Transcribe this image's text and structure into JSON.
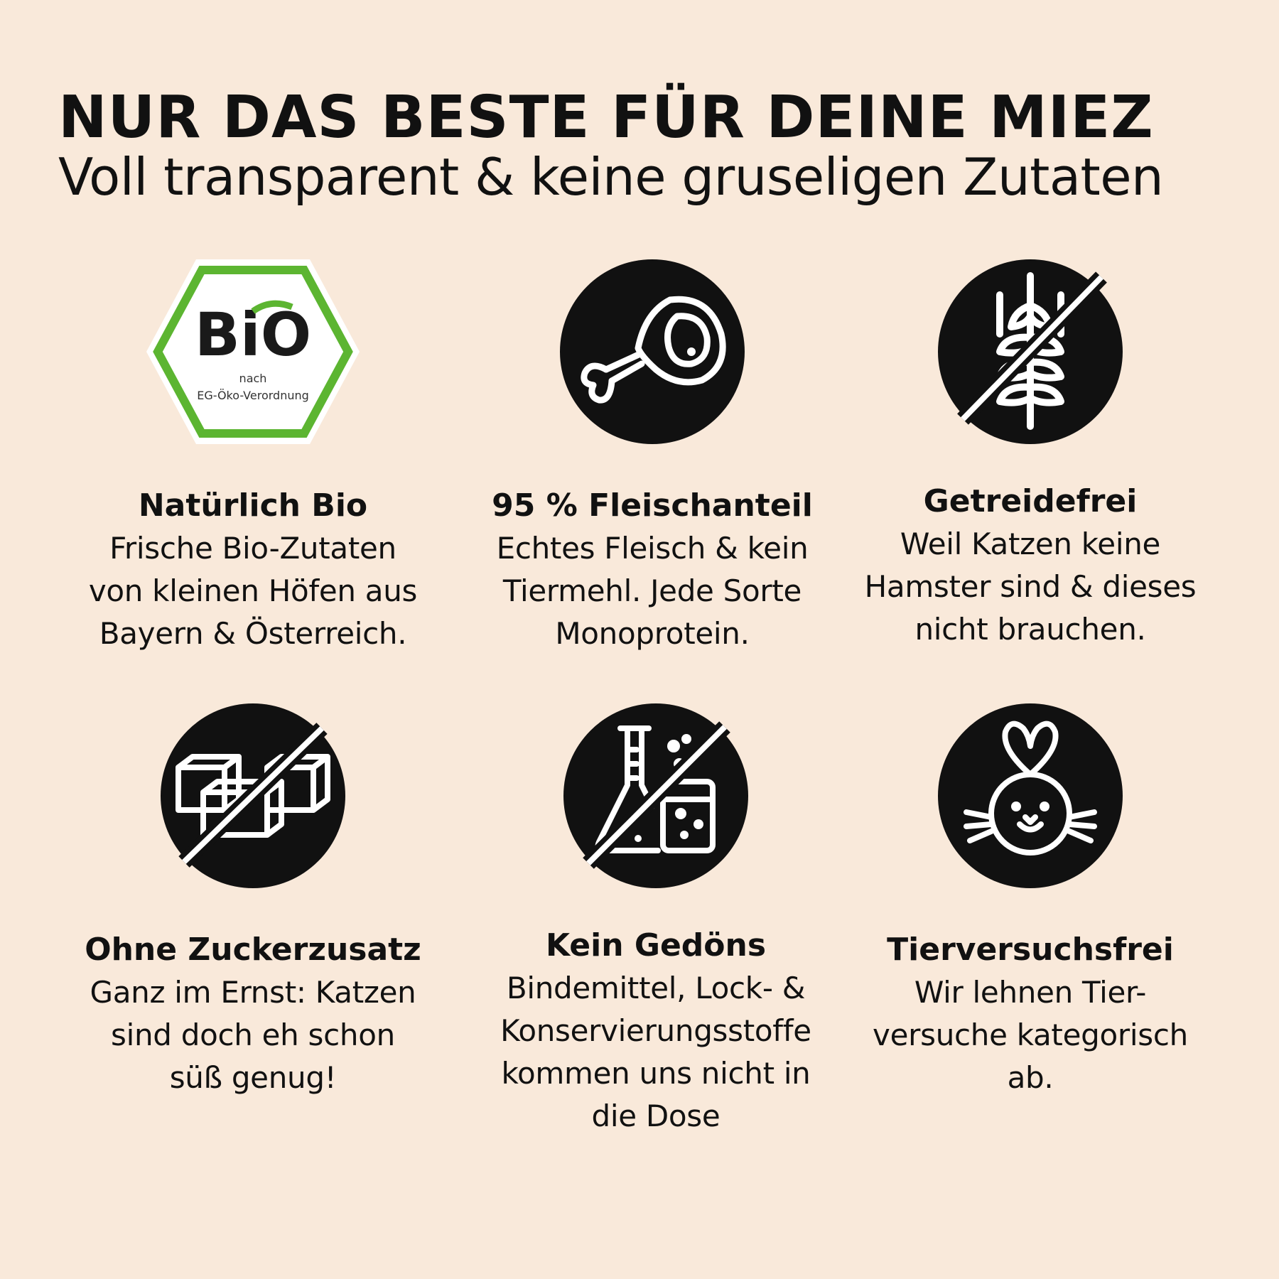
{
  "header": {
    "title": "NUR DAS BESTE FÜR DEINE MIEZ",
    "subtitle": "Voll transparent & keine gruseligen Zutaten"
  },
  "colors": {
    "background": "#f9e9da",
    "icon_circle": "#111111",
    "bio_green": "#5cb531"
  },
  "features": [
    {
      "icon": "bio-seal-icon",
      "seal_word": "BiO",
      "seal_line1": "nach",
      "seal_line2": "EG-Öko-Verordnung",
      "title": "Natürlich Bio",
      "text": [
        "Frische Bio-Zutaten",
        "von kleinen Höfen aus",
        "Bayern & Österreich."
      ]
    },
    {
      "icon": "meat-leg-icon",
      "title": "95 % Fleischanteil",
      "text": [
        "Echtes Fleisch & kein",
        "Tiermehl. Jede Sorte",
        "Monoprotein."
      ]
    },
    {
      "icon": "no-grain-icon",
      "title": "Getreidefrei",
      "text": [
        "Weil Katzen keine",
        "Hamster sind & dieses",
        "nicht brauchen."
      ]
    },
    {
      "icon": "no-sugar-cubes-icon",
      "title": "Ohne Zuckerzusatz",
      "text": [
        "Ganz im Ernst: Katzen",
        "sind doch eh schon",
        "süß genug!"
      ]
    },
    {
      "icon": "no-chemicals-icon",
      "title": "Kein Gedöns",
      "text": [
        "Bindemittel, Lock- &",
        "Konservierungsstoffe",
        "kommen uns nicht in",
        "die Dose"
      ]
    },
    {
      "icon": "bunny-icon",
      "title": "Tierversuchsfrei",
      "text": [
        "Wir lehnen Tier-",
        "versuche kategorisch",
        "ab."
      ]
    }
  ]
}
